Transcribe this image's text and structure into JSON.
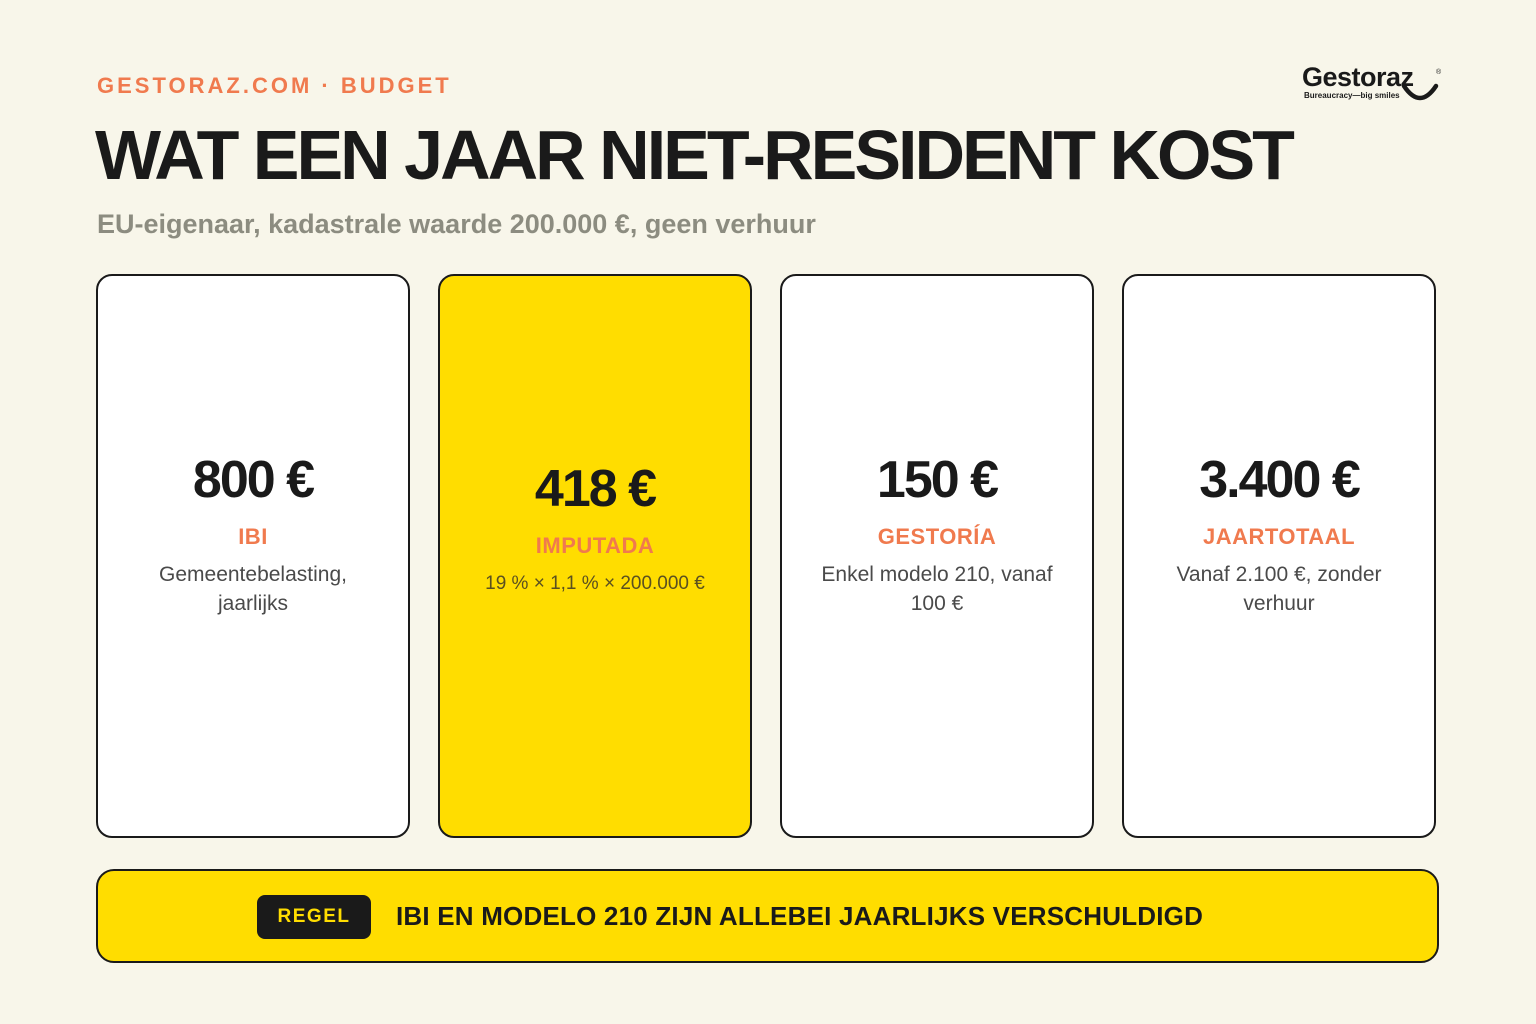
{
  "header": {
    "eyebrow": "GESTORAZ.COM · BUDGET",
    "title": "WAT EEN JAAR NIET-RESIDENT KOST",
    "subtitle": "EU-eigenaar, kadastrale waarde 200.000 €, geen verhuur"
  },
  "logo": {
    "wordmark": "Gestoraz",
    "registered": "®",
    "tagline": "Bureaucracy—big smiles"
  },
  "cards": [
    {
      "value": "800 €",
      "label": "IBI",
      "description": "Gemeentebelasting, jaarlijks"
    },
    {
      "value": "418 €",
      "label": "IMPUTADA",
      "description": "19 % × 1,1 % × 200.000 €"
    },
    {
      "value": "150 €",
      "label": "GESTORÍA",
      "description": "Enkel modelo 210, vanaf 100 €"
    },
    {
      "value": "3.400 €",
      "label": "JAARTOTAAL",
      "description": "Vanaf 2.100 €, zonder verhuur"
    }
  ],
  "banner": {
    "badge": "REGEL",
    "text": "IBI EN MODELO 210 ZIJN ALLEBEI JAARLIJKS VERSCHULDIGD"
  },
  "colors": {
    "background": "#f8f6ea",
    "accent_orange": "#f07a4e",
    "accent_yellow": "#ffdd00",
    "ink": "#1a1a1a",
    "muted": "#8c8c80"
  }
}
